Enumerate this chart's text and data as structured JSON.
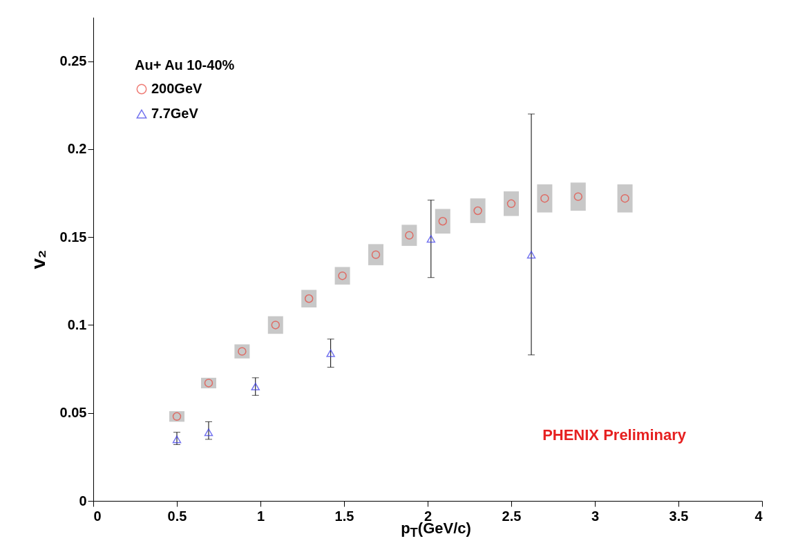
{
  "chart_data": {
    "type": "scatter",
    "xlabel": "p$_{T}$(GeV/c)",
    "ylabel": "v₂",
    "legend_title": "Au+ Au 10-40%",
    "xlim": [
      0,
      4
    ],
    "xticks": [
      0,
      0.5,
      1,
      1.5,
      2,
      2.5,
      3,
      3.5,
      4
    ],
    "ylim": [
      0,
      0.275
    ],
    "yticks": [
      0,
      0.05,
      0.1,
      0.15,
      0.2,
      0.25
    ],
    "grid": false,
    "legend": "top left",
    "annotations": [
      "PHENIX Preliminary"
    ],
    "series": [
      {
        "name": "200GeV",
        "color": "#e8443a",
        "marker": "circle",
        "x": [
          0.5,
          0.69,
          0.89,
          1.09,
          1.29,
          1.49,
          1.69,
          1.89,
          2.09,
          2.3,
          2.5,
          2.7,
          2.9,
          3.18
        ],
        "values": [
          0.048,
          0.067,
          0.085,
          0.1,
          0.115,
          0.128,
          0.14,
          0.151,
          0.159,
          0.165,
          0.169,
          0.172,
          0.173,
          0.172
        ],
        "errors": [
          0.003,
          0.003,
          0.004,
          0.005,
          0.005,
          0.005,
          0.006,
          0.006,
          0.007,
          0.007,
          0.007,
          0.008,
          0.008,
          0.008
        ]
      },
      {
        "name": "7.7GeV",
        "color": "#3a3ae8",
        "marker": "triangle",
        "x": [
          0.5,
          0.69,
          0.97,
          1.42,
          2.02,
          2.62
        ],
        "values": [
          0.035,
          0.039,
          0.065,
          0.084,
          0.149,
          0.14
        ],
        "errors": [
          [
            0.032,
            0.039
          ],
          [
            0.035,
            0.045
          ],
          [
            0.06,
            0.07
          ],
          [
            0.076,
            0.092
          ],
          [
            0.127,
            0.171
          ],
          [
            0.083,
            0.22
          ]
        ]
      }
    ]
  }
}
